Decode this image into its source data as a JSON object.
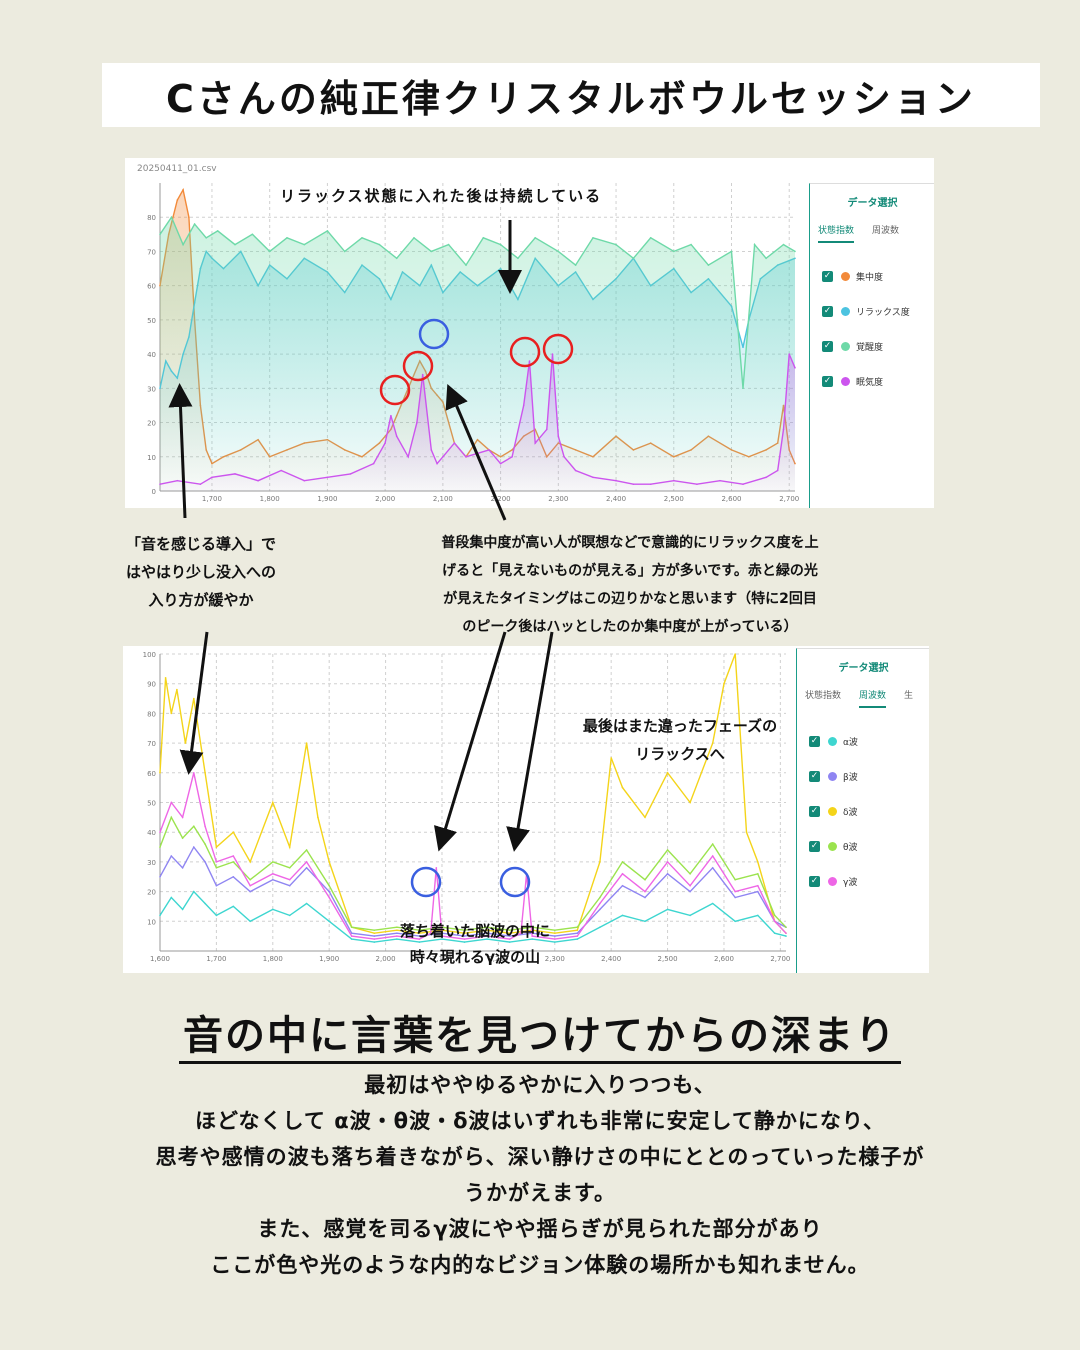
{
  "title": "Cさんの純正律クリスタルボウルセッション",
  "panel1": {
    "filename": "20250411_01.csv",
    "side_title": "データ選択",
    "tabs": [
      "状態指数",
      "周波数"
    ],
    "legend": [
      {
        "label": "集中度",
        "color": "#f28a3a"
      },
      {
        "label": "リラックス度",
        "color": "#4cc3e0"
      },
      {
        "label": "覚醒度",
        "color": "#6ed9a8"
      },
      {
        "label": "眠気度",
        "color": "#cc55ee"
      }
    ]
  },
  "panel2": {
    "side_title": "データ選択",
    "tabs": [
      "状態指数",
      "周波数",
      "生"
    ],
    "legend": [
      {
        "label": "α波",
        "color": "#3ed6d0"
      },
      {
        "label": "β波",
        "color": "#8f85f2"
      },
      {
        "label": "δ波",
        "color": "#f4d41a"
      },
      {
        "label": "θ波",
        "color": "#9be34e"
      },
      {
        "label": "γ波",
        "color": "#ee66e6"
      }
    ]
  },
  "annotations": {
    "top": "リラックス状態に入れた後は持続している",
    "left": [
      "「音を感じる導入」で",
      "はやはり少し没入への",
      "入り方が緩やか"
    ],
    "middle": [
      "普段集中度が高い人が瞑想などで意識的にリラックス度を上",
      "げると「見えないものが見える」方が多いです。赤と緑の光",
      "が見えたタイミングはこの辺りかなと思います（特に2回目",
      "のピーク後はハッとしたのか集中度が上がっている）"
    ],
    "right": [
      "最後はまた違ったフェーズの",
      "リラックスへ"
    ],
    "bottom": [
      "落ち着いた脳波の中に",
      "時々現れるγ波の山"
    ]
  },
  "heading": "音の中に言葉を見つけてからの深まり",
  "body": [
    "最初はややゆるやかに入りつつも、",
    "ほどなくして α波・θ波・δ波はいずれも非常に安定して静かになり、",
    "思考や感情の波も落ち着きながら、深い静けさの中にととのっていった様子が",
    "うかがえます。",
    "また、感覚を司るγ波にやや揺らぎが見られた部分があり",
    "ここが色や光のような内的なビジョン体験の場所かも知れません。"
  ],
  "chart_data": [
    {
      "type": "line",
      "x_ticks": [
        "1,700",
        "1,800",
        "1,900",
        "2,000",
        "2,100",
        "2,200",
        "2,300",
        "2,400",
        "2,500",
        "2,600",
        "2,700"
      ],
      "y_ticks": [
        "0",
        "10",
        "20",
        "30",
        "40",
        "50",
        "60",
        "70",
        "80"
      ],
      "xlim": [
        1610,
        2710
      ],
      "ylim": [
        0,
        90
      ],
      "grid": true,
      "legend_position": "right",
      "series": [
        {
          "name": "集中度",
          "color": "#f28a3a",
          "x": [
            1610,
            1625,
            1640,
            1650,
            1660,
            1670,
            1680,
            1690,
            1700,
            1720,
            1750,
            1780,
            1800,
            1830,
            1860,
            1900,
            1930,
            1960,
            1990,
            2010,
            2020,
            2040,
            2060,
            2070,
            2080,
            2090,
            2100,
            2120,
            2140,
            2160,
            2180,
            2200,
            2220,
            2240,
            2260,
            2280,
            2300,
            2330,
            2360,
            2400,
            2430,
            2460,
            2500,
            2530,
            2560,
            2600,
            2630,
            2660,
            2680,
            2690,
            2700,
            2710
          ],
          "y": [
            60,
            75,
            85,
            88,
            80,
            50,
            25,
            12,
            8,
            10,
            12,
            15,
            10,
            12,
            14,
            15,
            12,
            10,
            14,
            18,
            22,
            30,
            38,
            35,
            30,
            28,
            26,
            14,
            10,
            15,
            12,
            10,
            12,
            16,
            18,
            10,
            14,
            12,
            10,
            16,
            12,
            14,
            10,
            12,
            16,
            12,
            10,
            12,
            14,
            25,
            12,
            8
          ]
        },
        {
          "name": "リラックス度",
          "color": "#4cc3e0",
          "x": [
            1610,
            1620,
            1630,
            1640,
            1650,
            1660,
            1670,
            1680,
            1690,
            1700,
            1720,
            1750,
            1780,
            1800,
            1830,
            1860,
            1900,
            1930,
            1960,
            1990,
            2010,
            2030,
            2060,
            2080,
            2100,
            2130,
            2160,
            2200,
            2230,
            2260,
            2300,
            2330,
            2360,
            2400,
            2430,
            2460,
            2500,
            2530,
            2560,
            2600,
            2620,
            2630,
            2650,
            2680,
            2710
          ],
          "y": [
            30,
            38,
            35,
            33,
            40,
            45,
            55,
            65,
            70,
            68,
            65,
            70,
            60,
            66,
            62,
            68,
            64,
            58,
            66,
            62,
            56,
            64,
            60,
            66,
            58,
            64,
            60,
            65,
            56,
            68,
            60,
            64,
            56,
            62,
            68,
            60,
            65,
            58,
            62,
            54,
            42,
            50,
            62,
            66,
            68
          ]
        },
        {
          "name": "覚醒度",
          "color": "#6ed9a8",
          "x": [
            1610,
            1630,
            1650,
            1670,
            1690,
            1710,
            1740,
            1770,
            1800,
            1830,
            1860,
            1900,
            1930,
            1960,
            1990,
            2020,
            2050,
            2080,
            2110,
            2140,
            2170,
            2200,
            2230,
            2260,
            2300,
            2330,
            2360,
            2400,
            2430,
            2460,
            2500,
            2530,
            2560,
            2600,
            2620,
            2640,
            2660,
            2690,
            2710
          ],
          "y": [
            75,
            80,
            72,
            78,
            74,
            76,
            72,
            75,
            70,
            74,
            72,
            76,
            70,
            74,
            72,
            68,
            74,
            70,
            72,
            66,
            74,
            72,
            68,
            74,
            70,
            66,
            74,
            72,
            68,
            74,
            70,
            72,
            66,
            70,
            30,
            72,
            68,
            72,
            70
          ]
        },
        {
          "name": "眠気度",
          "color": "#cc55ee",
          "x": [
            1610,
            1640,
            1680,
            1700,
            1740,
            1780,
            1820,
            1860,
            1900,
            1940,
            1980,
            2000,
            2010,
            2020,
            2040,
            2055,
            2065,
            2080,
            2090,
            2100,
            2120,
            2140,
            2180,
            2200,
            2220,
            2240,
            2250,
            2260,
            2280,
            2290,
            2300,
            2310,
            2330,
            2360,
            2400,
            2430,
            2460,
            2500,
            2540,
            2580,
            2620,
            2660,
            2680,
            2690,
            2700,
            2710
          ],
          "y": [
            2,
            3,
            2,
            4,
            5,
            3,
            6,
            3,
            4,
            5,
            8,
            14,
            22,
            16,
            10,
            20,
            34,
            12,
            8,
            10,
            14,
            10,
            12,
            8,
            10,
            25,
            38,
            14,
            18,
            40,
            16,
            10,
            6,
            4,
            3,
            2,
            2,
            3,
            2,
            3,
            2,
            4,
            6,
            18,
            40,
            36
          ]
        }
      ]
    },
    {
      "type": "line",
      "x_ticks": [
        "1,600",
        "1,700",
        "1,800",
        "1,900",
        "2,000",
        "2,100",
        "2,200",
        "2,300",
        "2,400",
        "2,500",
        "2,600",
        "2,700"
      ],
      "y_ticks": [
        "10",
        "20",
        "30",
        "40",
        "50",
        "60",
        "70",
        "80",
        "90",
        "100"
      ],
      "xlim": [
        1600,
        2710
      ],
      "ylim": [
        0,
        100
      ],
      "grid": true,
      "legend_position": "right",
      "series": [
        {
          "name": "α波",
          "color": "#3ed6d0",
          "x": [
            1600,
            1620,
            1640,
            1660,
            1680,
            1700,
            1730,
            1760,
            1800,
            1830,
            1860,
            1900,
            1940,
            1980,
            2020,
            2060,
            2100,
            2140,
            2180,
            2220,
            2260,
            2300,
            2340,
            2380,
            2420,
            2460,
            2500,
            2540,
            2580,
            2620,
            2660,
            2690,
            2710
          ],
          "y": [
            12,
            18,
            14,
            20,
            16,
            12,
            15,
            10,
            14,
            12,
            16,
            10,
            4,
            3,
            4,
            3,
            4,
            3,
            4,
            3,
            4,
            3,
            4,
            8,
            12,
            10,
            14,
            12,
            16,
            10,
            12,
            6,
            5
          ]
        },
        {
          "name": "β波",
          "color": "#8f85f2",
          "x": [
            1600,
            1620,
            1640,
            1660,
            1680,
            1700,
            1730,
            1760,
            1800,
            1830,
            1860,
            1900,
            1940,
            1980,
            2020,
            2060,
            2100,
            2140,
            2180,
            2220,
            2260,
            2300,
            2340,
            2380,
            2420,
            2460,
            2500,
            2540,
            2580,
            2620,
            2660,
            2690,
            2710
          ],
          "y": [
            25,
            32,
            28,
            35,
            30,
            22,
            25,
            20,
            24,
            22,
            28,
            20,
            6,
            5,
            6,
            5,
            6,
            5,
            6,
            5,
            6,
            5,
            6,
            14,
            22,
            18,
            26,
            20,
            28,
            18,
            20,
            10,
            8
          ]
        },
        {
          "name": "δ波",
          "color": "#f4d41a",
          "x": [
            1600,
            1610,
            1620,
            1630,
            1645,
            1660,
            1680,
            1700,
            1730,
            1760,
            1800,
            1830,
            1860,
            1880,
            1900,
            1940,
            1980,
            2020,
            2060,
            2100,
            2140,
            2180,
            2220,
            2260,
            2300,
            2340,
            2380,
            2400,
            2420,
            2460,
            2500,
            2540,
            2580,
            2600,
            2620,
            2640,
            2660,
            2690,
            2710
          ],
          "y": [
            60,
            92,
            80,
            88,
            70,
            85,
            60,
            35,
            40,
            30,
            50,
            35,
            70,
            45,
            30,
            8,
            6,
            7,
            6,
            7,
            6,
            7,
            6,
            7,
            6,
            7,
            30,
            65,
            55,
            45,
            60,
            50,
            70,
            90,
            100,
            40,
            30,
            10,
            6
          ]
        },
        {
          "name": "θ波",
          "color": "#9be34e",
          "x": [
            1600,
            1620,
            1640,
            1660,
            1680,
            1700,
            1730,
            1760,
            1800,
            1830,
            1860,
            1900,
            1940,
            1980,
            2020,
            2060,
            2100,
            2140,
            2180,
            2220,
            2260,
            2300,
            2340,
            2380,
            2420,
            2460,
            2500,
            2540,
            2580,
            2620,
            2660,
            2690,
            2710
          ],
          "y": [
            35,
            45,
            38,
            42,
            36,
            28,
            30,
            24,
            30,
            28,
            34,
            22,
            8,
            7,
            8,
            7,
            8,
            7,
            8,
            7,
            8,
            7,
            8,
            18,
            30,
            24,
            34,
            26,
            36,
            24,
            26,
            12,
            8
          ]
        },
        {
          "name": "γ波",
          "color": "#ee66e6",
          "x": [
            1600,
            1620,
            1640,
            1660,
            1680,
            1700,
            1730,
            1760,
            1800,
            1830,
            1860,
            1900,
            1940,
            1980,
            2020,
            2060,
            2080,
            2090,
            2100,
            2140,
            2180,
            2220,
            2240,
            2250,
            2260,
            2300,
            2340,
            2380,
            2420,
            2460,
            2500,
            2540,
            2580,
            2620,
            2660,
            2690,
            2710
          ],
          "y": [
            40,
            50,
            45,
            60,
            42,
            30,
            32,
            22,
            26,
            24,
            30,
            18,
            5,
            4,
            5,
            4,
            6,
            28,
            5,
            4,
            5,
            4,
            6,
            26,
            5,
            4,
            5,
            16,
            26,
            20,
            30,
            22,
            32,
            20,
            22,
            10,
            6
          ]
        }
      ]
    }
  ]
}
